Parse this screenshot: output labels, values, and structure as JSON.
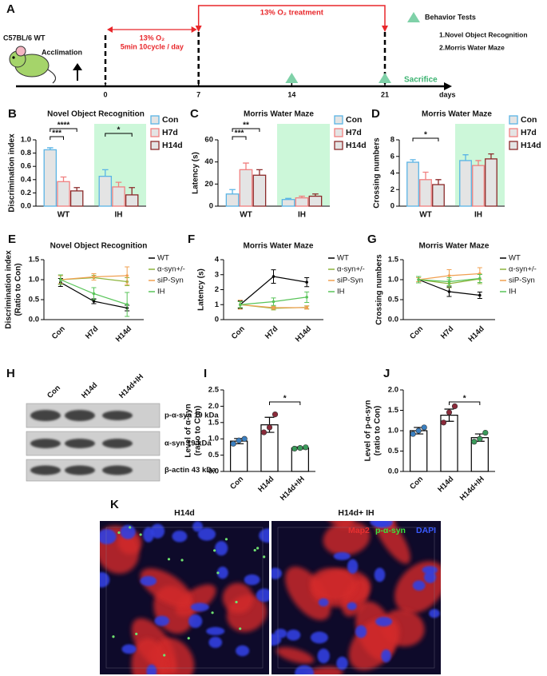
{
  "timeline": {
    "label": "A",
    "strain": "C57BL/6 WT",
    "acclimation": "Acclimation",
    "treatment": "13% O₂ treatment",
    "hypoxia": [
      "13% O₂",
      "5min 10cycle / day"
    ],
    "ticks": [
      0,
      7,
      14,
      21
    ],
    "unit": "days",
    "sacrifice": "Sacrifice",
    "legend_title": "Behavior Tests",
    "tests": [
      "1.Novel Object Recognition",
      "2.Morris Water Maze"
    ]
  },
  "chart_data": [
    {
      "label": "B",
      "type": "bar",
      "title": "Novel Object Recognition",
      "ylabel": [
        "Discrimination index"
      ],
      "categories": [
        "WT",
        "IH"
      ],
      "series": [
        {
          "name": "Con",
          "color": "#5ab4e5",
          "values": [
            0.85,
            0.45
          ],
          "errors": [
            0.03,
            0.1
          ]
        },
        {
          "name": "H7d",
          "color": "#f08080",
          "values": [
            0.37,
            0.29
          ],
          "errors": [
            0.07,
            0.07
          ]
        },
        {
          "name": "H14d",
          "color": "#8b2a2a",
          "values": [
            0.23,
            0.17
          ],
          "errors": [
            0.05,
            0.11
          ]
        }
      ],
      "ylim": [
        0,
        1.0
      ],
      "yticks": [
        {
          "value": 0,
          "label": "0.0"
        },
        {
          "value": 0.2,
          "label": "0.2"
        },
        {
          "value": 0.4,
          "label": "0.4"
        },
        {
          "value": 0.6,
          "label": "0.6"
        },
        {
          "value": 0.8,
          "label": "0.8"
        },
        {
          "value": 1.0,
          "label": "1.0"
        }
      ],
      "annotations": [
        "****",
        "***",
        "*"
      ]
    },
    {
      "label": "C",
      "type": "bar",
      "title": "Morris Water Maze",
      "ylabel": [
        "Latency (s)"
      ],
      "categories": [
        "WT",
        "IH"
      ],
      "series": [
        {
          "name": "Con",
          "color": "#5ab4e5",
          "values": [
            11,
            6
          ],
          "errors": [
            4,
            1
          ]
        },
        {
          "name": "H7d",
          "color": "#f08080",
          "values": [
            33,
            7.5
          ],
          "errors": [
            6,
            1.5
          ]
        },
        {
          "name": "H14d",
          "color": "#8b2a2a",
          "values": [
            28,
            9
          ],
          "errors": [
            5,
            2
          ]
        }
      ],
      "ylim": [
        0,
        60
      ],
      "yticks": [
        0,
        20,
        40,
        60
      ],
      "annotations": [
        "**",
        "***"
      ]
    },
    {
      "label": "D",
      "type": "bar",
      "title": "Morris Water Maze",
      "ylabel": [
        "Crossing numbers"
      ],
      "categories": [
        "WT",
        "IH"
      ],
      "series": [
        {
          "name": "Con",
          "color": "#5ab4e5",
          "values": [
            5.3,
            5.5
          ],
          "errors": [
            0.3,
            0.7
          ]
        },
        {
          "name": "H7d",
          "color": "#f08080",
          "values": [
            3.2,
            4.9
          ],
          "errors": [
            0.9,
            0.6
          ]
        },
        {
          "name": "H14d",
          "color": "#8b2a2a",
          "values": [
            2.6,
            5.7
          ],
          "errors": [
            0.6,
            0.6
          ]
        }
      ],
      "ylim": [
        0,
        8
      ],
      "yticks": [
        0,
        2,
        4,
        6,
        8
      ],
      "annotations": [
        "*"
      ]
    },
    {
      "label": "E",
      "type": "line",
      "title": "Novel Object Recognition",
      "ylabel": [
        "Discrimination index",
        "(Ratio to Con)"
      ],
      "categories": [
        "Con",
        "H7d",
        "H14d"
      ],
      "series": [
        {
          "name": "WT",
          "color": "#000000",
          "values": [
            0.93,
            0.46,
            0.29
          ],
          "errors": [
            0.1,
            0.06,
            0.07
          ]
        },
        {
          "name": "α-syn+/-",
          "color": "#8cb43c",
          "values": [
            1.0,
            1.05,
            0.95
          ],
          "errors": [
            0.12,
            0.06,
            0.1
          ]
        },
        {
          "name": "siP-Syn",
          "color": "#f0a050",
          "values": [
            1.0,
            1.07,
            1.1
          ],
          "errors": [
            0.1,
            0.08,
            0.22
          ]
        },
        {
          "name": "IH",
          "color": "#58c458",
          "values": [
            1.0,
            0.65,
            0.38
          ],
          "errors": [
            0.12,
            0.15,
            0.3
          ]
        }
      ],
      "ylim": [
        0,
        1.5
      ],
      "yticks": [
        {
          "value": 0,
          "label": "0.0"
        },
        {
          "value": 0.5,
          "label": "0.5"
        },
        {
          "value": 1.0,
          "label": "1.0"
        },
        {
          "value": 1.5,
          "label": "1.5"
        }
      ]
    },
    {
      "label": "F",
      "type": "line",
      "title": "Morris Water Maze",
      "ylabel": [
        "Latency (s)"
      ],
      "categories": [
        "Con",
        "H7d",
        "H14d"
      ],
      "series": [
        {
          "name": "WT",
          "color": "#000000",
          "values": [
            1.0,
            2.88,
            2.5
          ],
          "errors": [
            0.25,
            0.45,
            0.3
          ]
        },
        {
          "name": "α-syn+/-",
          "color": "#8cb43c",
          "values": [
            1.0,
            0.75,
            0.82
          ],
          "errors": [
            0.2,
            0.1,
            0.1
          ]
        },
        {
          "name": "siP-Syn",
          "color": "#f0a050",
          "values": [
            1.0,
            0.8,
            0.8
          ],
          "errors": [
            0.3,
            0.1,
            0.1
          ]
        },
        {
          "name": "IH",
          "color": "#58c458",
          "values": [
            1.0,
            1.2,
            1.5
          ],
          "errors": [
            0.2,
            0.25,
            0.35
          ]
        }
      ],
      "ylim": [
        0,
        4
      ],
      "yticks": [
        0,
        1,
        2,
        3,
        4
      ]
    },
    {
      "label": "G",
      "type": "line",
      "title": "Morris Water Maze",
      "ylabel": [
        "Crossing numbers"
      ],
      "categories": [
        "Con",
        "H7d",
        "H14d"
      ],
      "series": [
        {
          "name": "WT",
          "color": "#000000",
          "values": [
            1.0,
            0.7,
            0.61
          ],
          "errors": [
            0.08,
            0.12,
            0.08
          ]
        },
        {
          "name": "α-syn+/-",
          "color": "#8cb43c",
          "values": [
            1.0,
            0.9,
            1.02
          ],
          "errors": [
            0.08,
            0.1,
            0.12
          ]
        },
        {
          "name": "siP-Syn",
          "color": "#f0a050",
          "values": [
            1.0,
            1.1,
            1.15
          ],
          "errors": [
            0.05,
            0.15,
            0.15
          ]
        },
        {
          "name": "IH",
          "color": "#58c458",
          "values": [
            1.0,
            0.95,
            1.03
          ],
          "errors": [
            0.08,
            0.1,
            0.1
          ]
        }
      ],
      "ylim": [
        0,
        1.5
      ],
      "yticks": [
        {
          "value": 0,
          "label": "0.0"
        },
        {
          "value": 0.5,
          "label": "0.5"
        },
        {
          "value": 1.0,
          "label": "1.0"
        },
        {
          "value": 1.5,
          "label": "1.5"
        }
      ]
    },
    {
      "label": "I",
      "type": "bar",
      "ylabel": [
        "Level of α-syn",
        "(ratio to Con)"
      ],
      "categories": [
        "Con",
        "H14d",
        "H14d+IH"
      ],
      "values": [
        0.93,
        1.43,
        0.72
      ],
      "errors": [
        0.08,
        0.23,
        0.03
      ],
      "points": [
        [
          0.85,
          0.95,
          1.0
        ],
        [
          1.2,
          1.35,
          1.75
        ],
        [
          0.7,
          0.72,
          0.74
        ]
      ],
      "colors": [
        "#3a7fc0",
        "#8b2a3a",
        "#3a9a5a"
      ],
      "ylim": [
        0,
        2.5
      ],
      "yticks": [
        {
          "value": 0,
          "label": "0.0"
        },
        {
          "value": 0.5,
          "label": "0.5"
        },
        {
          "value": 1.0,
          "label": "1.0"
        },
        {
          "value": 1.5,
          "label": "1.5"
        },
        {
          "value": 2.0,
          "label": "2.0"
        },
        {
          "value": 2.5,
          "label": "2.5"
        }
      ],
      "annotations": [
        "*"
      ]
    },
    {
      "label": "J",
      "type": "bar",
      "ylabel": [
        "Level of p-α-syn",
        "(ratio to Con)"
      ],
      "categories": [
        "Con",
        "H14d",
        "H14d+IH"
      ],
      "values": [
        1.0,
        1.38,
        0.83
      ],
      "errors": [
        0.08,
        0.15,
        0.09
      ],
      "points": [
        [
          0.92,
          1.0,
          1.08
        ],
        [
          1.2,
          1.45,
          1.6
        ],
        [
          0.73,
          0.8,
          0.95
        ]
      ],
      "colors": [
        "#3a7fc0",
        "#8b2a3a",
        "#3a9a5a"
      ],
      "ylim": [
        0,
        2.0
      ],
      "yticks": [
        {
          "value": 0,
          "label": "0.0"
        },
        {
          "value": 0.5,
          "label": "0.5"
        },
        {
          "value": 1.0,
          "label": "1.0"
        },
        {
          "value": 1.5,
          "label": "1.5"
        },
        {
          "value": 2.0,
          "label": "2.0"
        }
      ],
      "annotations": [
        "*"
      ]
    }
  ],
  "blot": {
    "label": "H",
    "lanes": [
      "Con",
      "H14d",
      "H14d+IH"
    ],
    "rows": [
      "p-α-syn 19 kDa",
      "α-syn 19 kDa",
      "β-actin 43 kDa"
    ]
  },
  "images": {
    "label": "K",
    "panels": [
      "H14d",
      "H14d+ IH"
    ],
    "stains": [
      "Map2",
      "p-α-syn",
      "DAPI"
    ]
  }
}
